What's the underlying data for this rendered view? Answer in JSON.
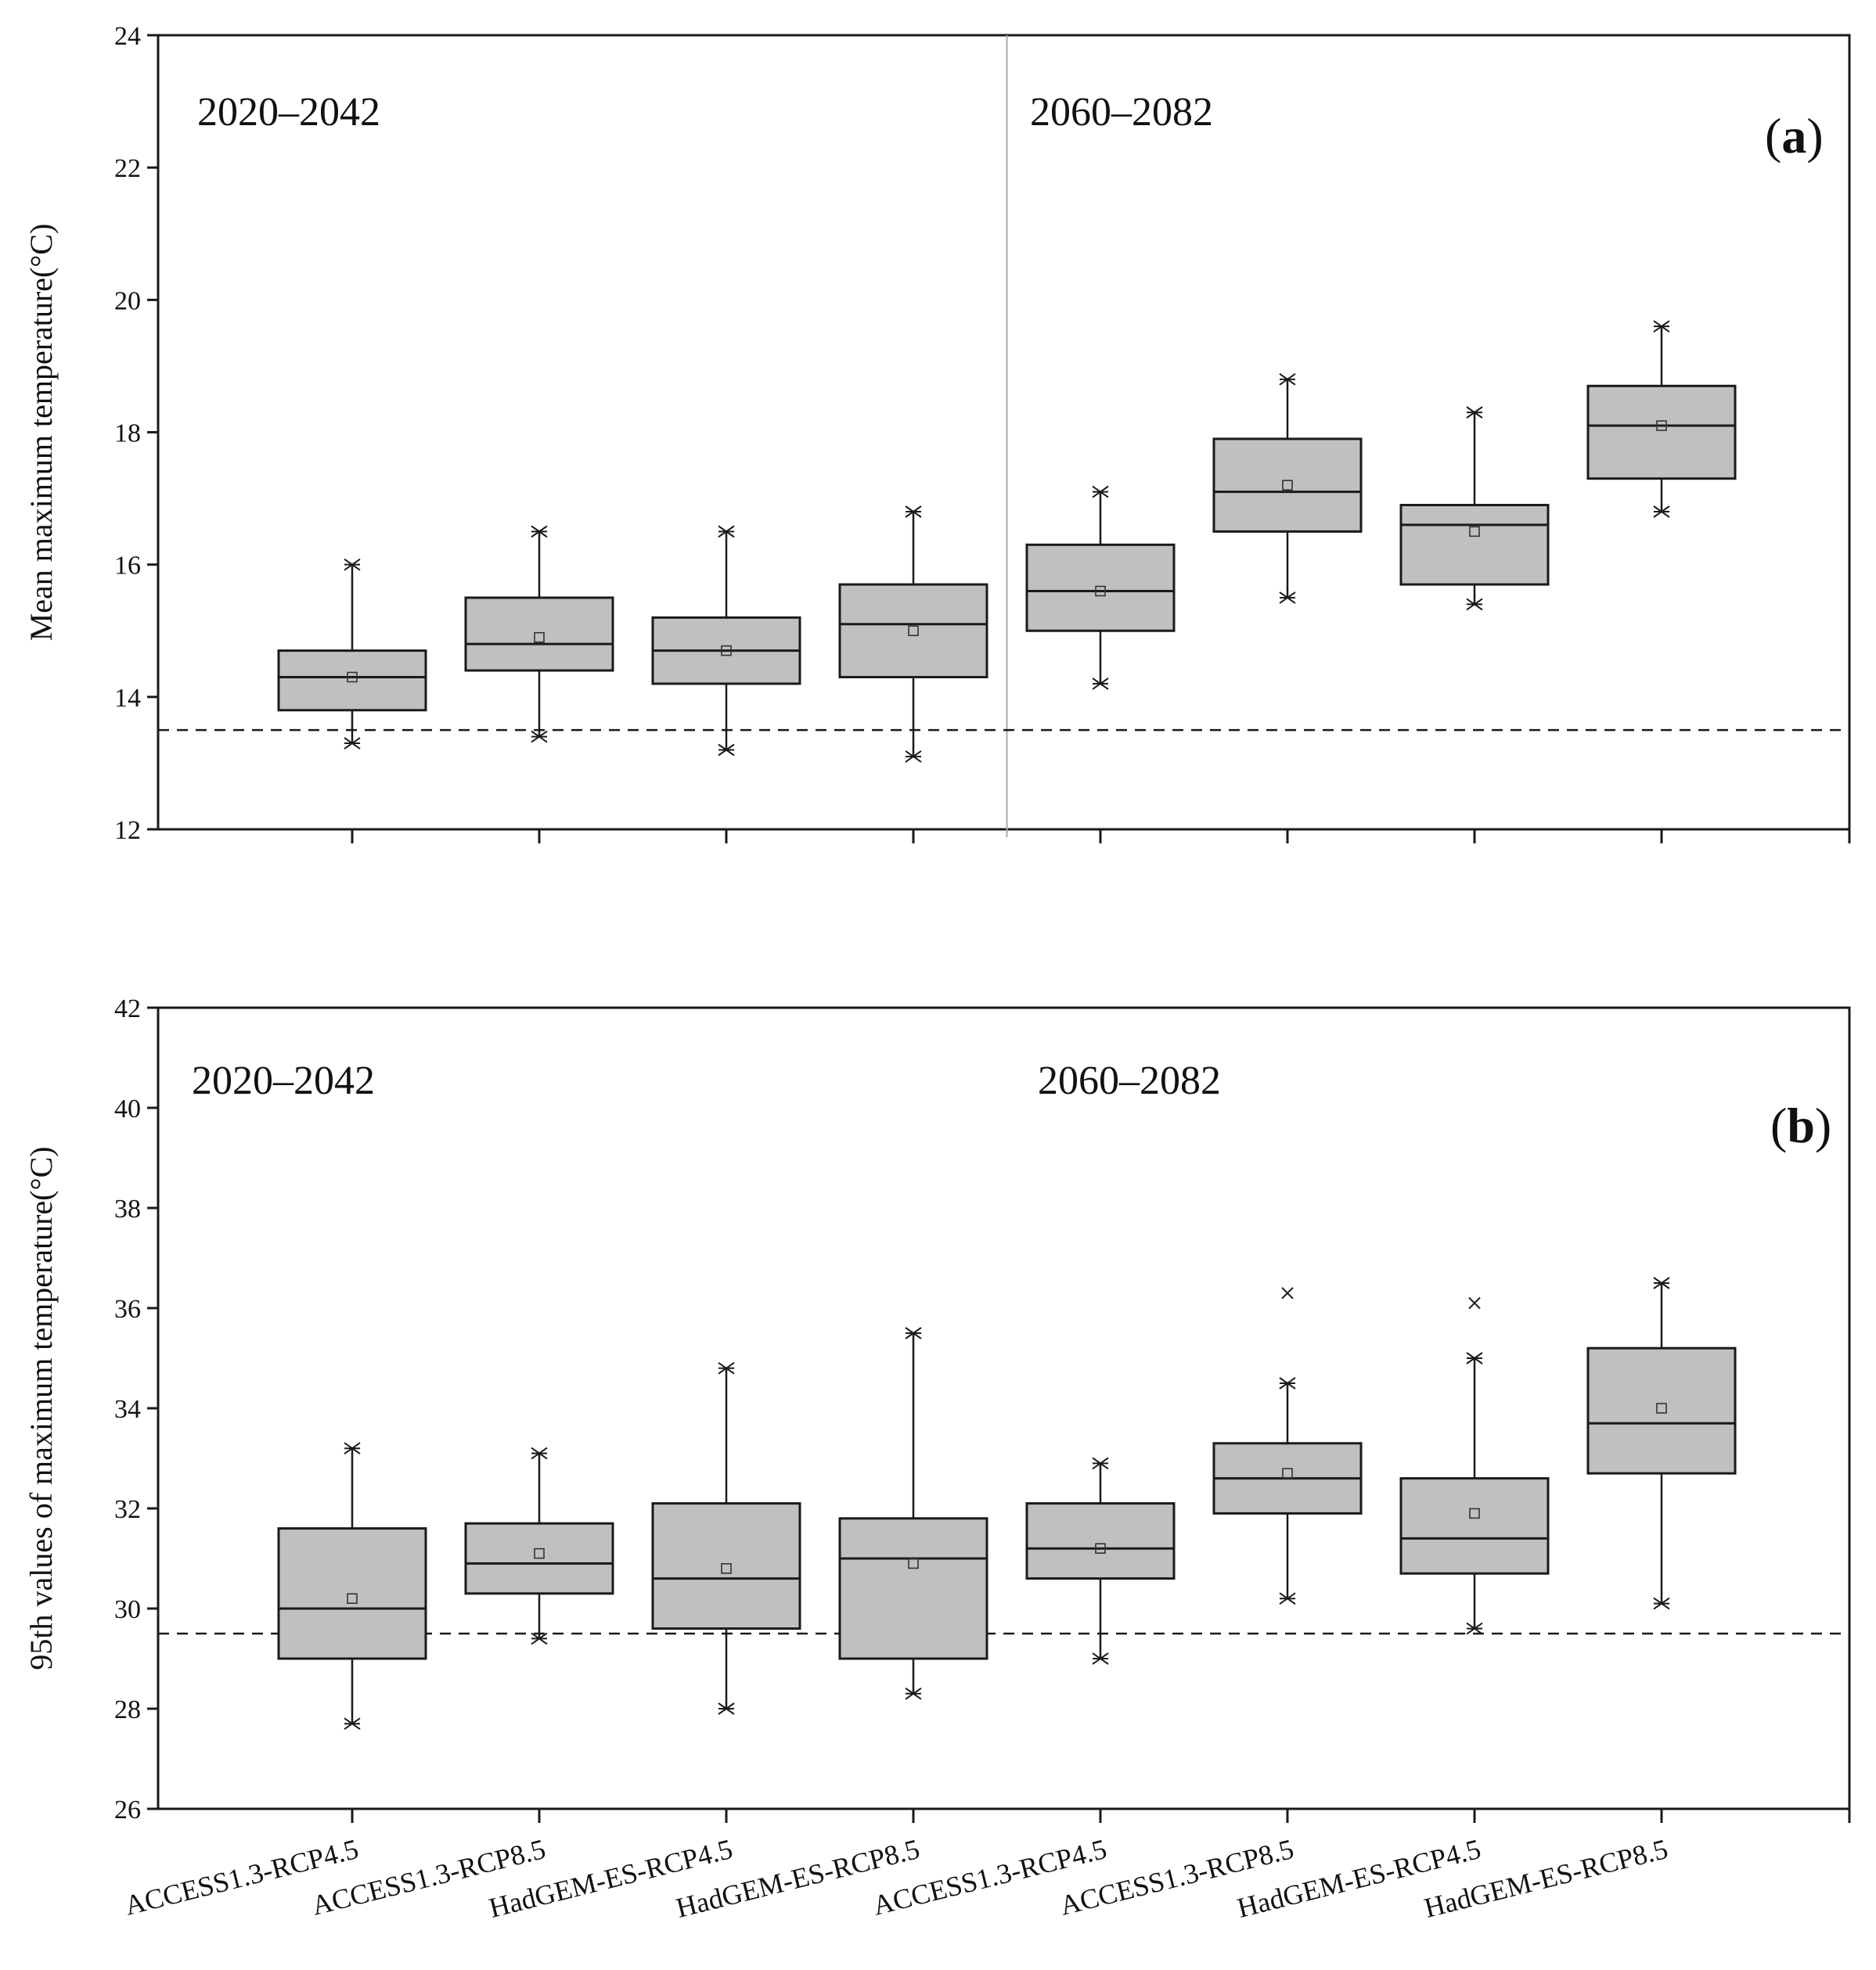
{
  "figure": {
    "categories": [
      "ACCESS1.3-RCP4.5",
      "ACCESS1.3-RCP8.5",
      "HadGEM-ES-RCP4.5",
      "HadGEM-ES-RCP8.5",
      "ACCESS1.3-RCP4.5",
      "ACCESS1.3-RCP8.5",
      "HadGEM-ES-RCP4.5",
      "HadGEM-ES-RCP8.5"
    ]
  },
  "colors": {
    "box_fill": "#c0c0c0",
    "stroke": "#1a1a1a",
    "divider": "#aaaaaa"
  },
  "chart_data": [
    {
      "type": "box",
      "panel_label": "(a)",
      "panel_letter": "a",
      "ylabel": "Mean maximum temperature(°C)",
      "xlabel": "",
      "ylim": [
        12,
        24
      ],
      "yticks": [
        "12",
        "14",
        "16",
        "18",
        "20",
        "22",
        "24"
      ],
      "period_labels": [
        "2020–2042",
        "2060–2082"
      ],
      "show_divider": true,
      "baseline": 13.5,
      "boxes": [
        {
          "min": 13.3,
          "q1": 13.8,
          "median": 14.3,
          "q3": 14.7,
          "max": 16.0,
          "mean": 14.3
        },
        {
          "min": 13.4,
          "q1": 14.4,
          "median": 14.8,
          "q3": 15.5,
          "max": 16.5,
          "mean": 14.9
        },
        {
          "min": 13.2,
          "q1": 14.2,
          "median": 14.7,
          "q3": 15.2,
          "max": 16.5,
          "mean": 14.7
        },
        {
          "min": 13.1,
          "q1": 14.3,
          "median": 15.1,
          "q3": 15.7,
          "max": 16.8,
          "mean": 15.0
        },
        {
          "min": 14.2,
          "q1": 15.0,
          "median": 15.6,
          "q3": 16.3,
          "max": 17.1,
          "mean": 15.6
        },
        {
          "min": 15.5,
          "q1": 16.5,
          "median": 17.1,
          "q3": 17.9,
          "max": 18.8,
          "mean": 17.2
        },
        {
          "min": 15.4,
          "q1": 15.7,
          "median": 16.6,
          "q3": 16.9,
          "max": 18.3,
          "mean": 16.5
        },
        {
          "min": 16.8,
          "q1": 17.3,
          "median": 18.1,
          "q3": 18.7,
          "max": 19.6,
          "mean": 18.1
        }
      ],
      "outliers": []
    },
    {
      "type": "box",
      "panel_label": "(b)",
      "panel_letter": "b",
      "ylabel": "95th values of maximum temperature(°C)",
      "xlabel": "",
      "ylim": [
        26,
        42
      ],
      "yticks": [
        "26",
        "28",
        "30",
        "32",
        "34",
        "36",
        "38",
        "40",
        "42"
      ],
      "period_labels": [
        "2020–2042",
        "2060–2082"
      ],
      "show_divider": false,
      "baseline": 29.5,
      "boxes": [
        {
          "min": 27.7,
          "q1": 29.0,
          "median": 30.0,
          "q3": 31.6,
          "max": 33.2,
          "mean": 30.2
        },
        {
          "min": 29.4,
          "q1": 30.3,
          "median": 30.9,
          "q3": 31.7,
          "max": 33.1,
          "mean": 31.1
        },
        {
          "min": 28.0,
          "q1": 29.6,
          "median": 30.6,
          "q3": 32.1,
          "max": 34.8,
          "mean": 30.8
        },
        {
          "min": 28.3,
          "q1": 29.0,
          "median": 31.0,
          "q3": 31.8,
          "max": 35.5,
          "mean": 30.9
        },
        {
          "min": 29.0,
          "q1": 30.6,
          "median": 31.2,
          "q3": 32.1,
          "max": 32.9,
          "mean": 31.2
        },
        {
          "min": 30.2,
          "q1": 31.9,
          "median": 32.6,
          "q3": 33.3,
          "max": 34.5,
          "mean": 32.7
        },
        {
          "min": 29.6,
          "q1": 30.7,
          "median": 31.4,
          "q3": 32.6,
          "max": 35.0,
          "mean": 31.9
        },
        {
          "min": 30.1,
          "q1": 32.7,
          "median": 33.7,
          "q3": 35.2,
          "max": 36.5,
          "mean": 34.0
        }
      ],
      "outliers": [
        {
          "index": 5,
          "value": 36.3
        },
        {
          "index": 6,
          "value": 36.1
        }
      ]
    }
  ]
}
